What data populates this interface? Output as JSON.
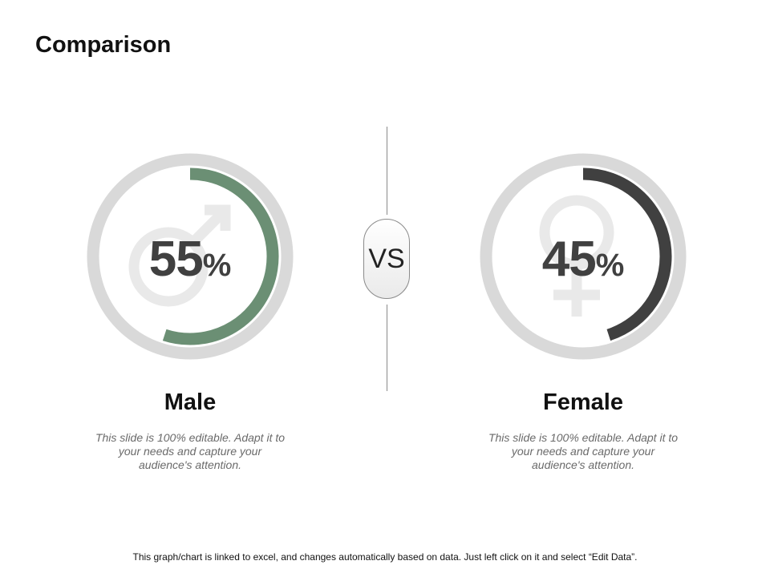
{
  "header": {
    "title": "Comparison"
  },
  "vs_label": "VS",
  "footer": {
    "note": "This graph/chart is linked to excel, and changes automatically based on data. Just left click on it and select “Edit Data”."
  },
  "colors": {
    "track": "#d9d9d9",
    "male_arc": "#6b8f74",
    "female_arc": "#404040",
    "symbol": "#e9e9e9"
  },
  "chart_data": [
    {
      "type": "pie",
      "category": "Male",
      "value": 55,
      "unit": "%",
      "icon": "male-symbol-icon",
      "description": "This slide is 100% editable. Adapt it to your needs and capture your audience's attention."
    },
    {
      "type": "pie",
      "category": "Female",
      "value": 45,
      "unit": "%",
      "icon": "female-symbol-icon",
      "description": "This slide is 100% editable. Adapt it to your needs and capture your audience's attention."
    }
  ]
}
